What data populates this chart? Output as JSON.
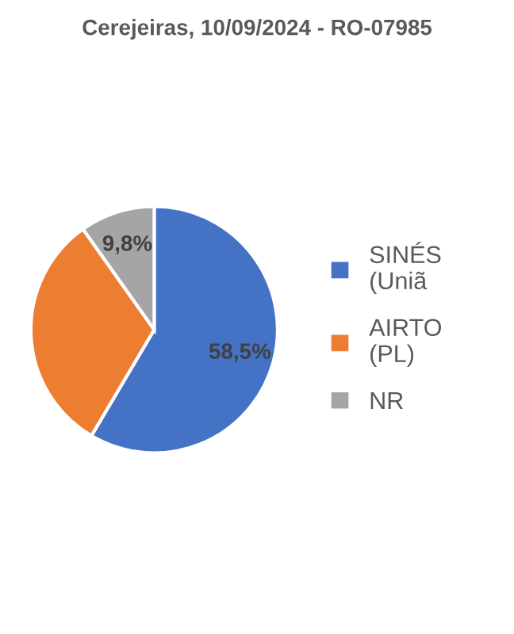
{
  "chart_data": {
    "type": "pie",
    "title": "Cerejeiras, 10/09/2024 - RO-07985",
    "categories": [
      "SINÉS\n(Uniã",
      "AIRTO\n(PL)",
      "NR"
    ],
    "values": [
      58.5,
      31.7,
      9.8
    ],
    "colors": [
      "#4472c4",
      "#ed7d31",
      "#a5a5a5"
    ],
    "value_labels": [
      "58,5%",
      null,
      "9,8%"
    ],
    "legend": "right"
  }
}
